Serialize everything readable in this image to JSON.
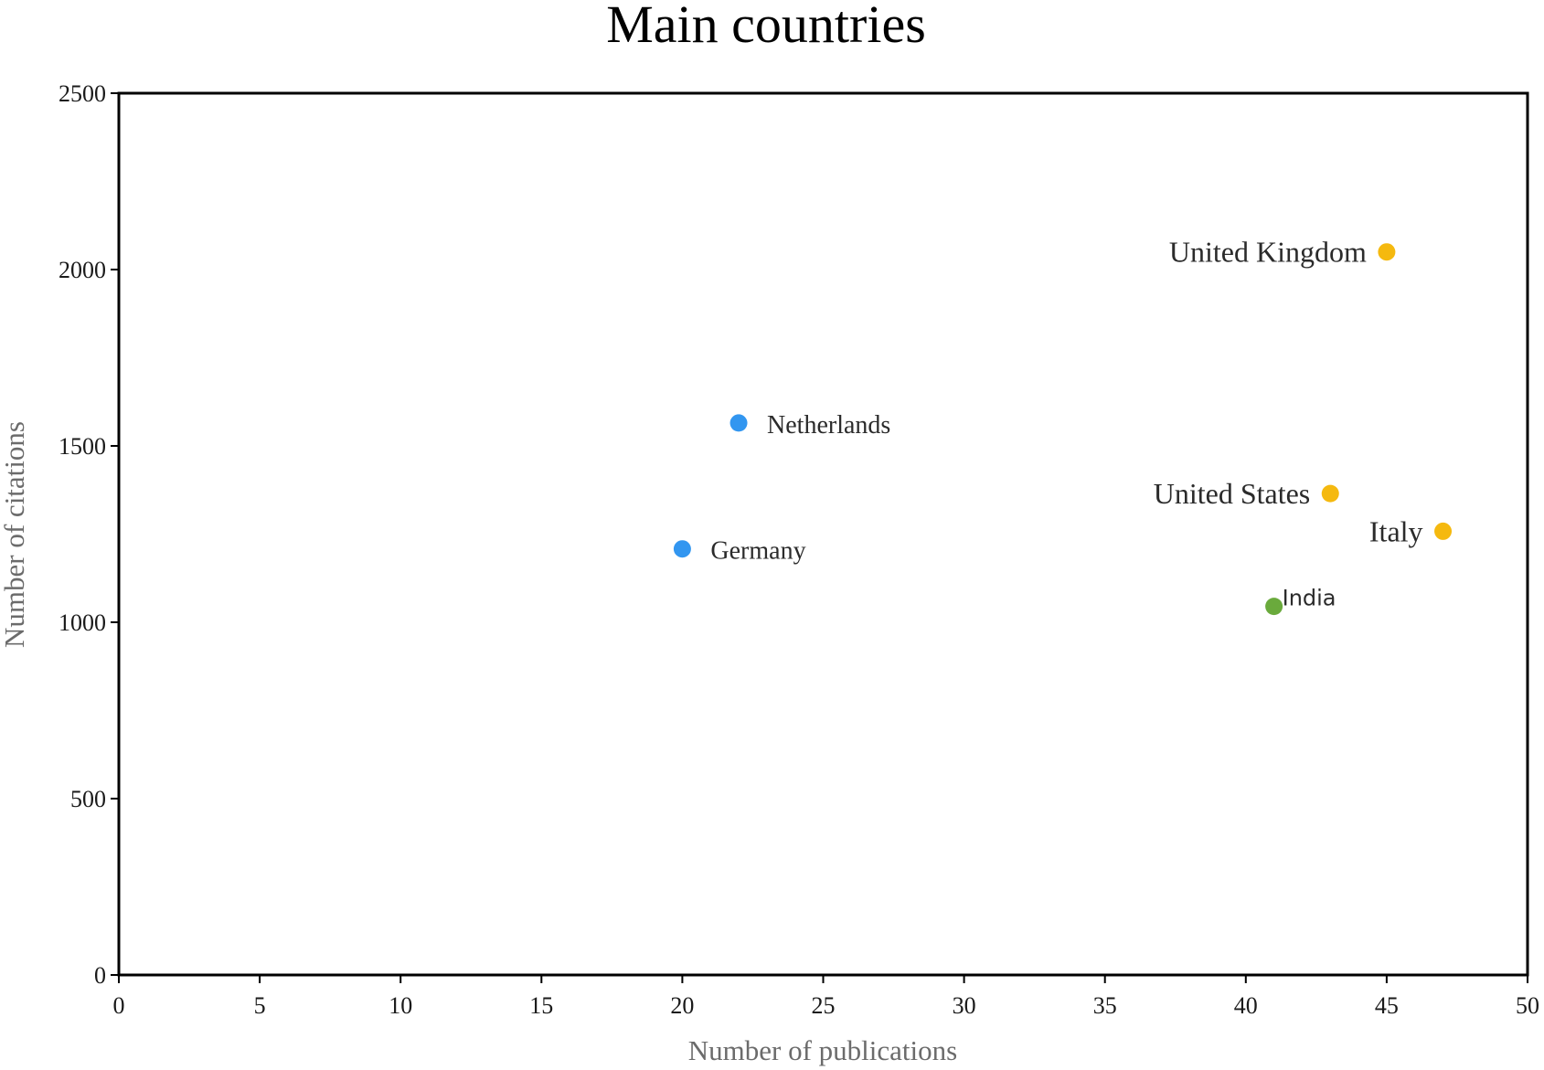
{
  "chart_data": {
    "type": "scatter",
    "title": "Main countries",
    "xlabel": "Number of publications",
    "ylabel": "Number of citations",
    "xlim": [
      0,
      50
    ],
    "ylim": [
      0,
      2500
    ],
    "xticks": [
      0,
      5,
      10,
      15,
      20,
      25,
      30,
      35,
      40,
      45,
      50
    ],
    "yticks": [
      0,
      500,
      1000,
      1500,
      2000,
      2500
    ],
    "grid": false,
    "legend": "none",
    "points": [
      {
        "label": "United Kingdom",
        "x": 45,
        "y": 2050,
        "color": "#F5B90F",
        "label_side": "left"
      },
      {
        "label": "Netherlands",
        "x": 22,
        "y": 1565,
        "color": "#3296F0",
        "label_side": "right"
      },
      {
        "label": "United States",
        "x": 43,
        "y": 1365,
        "color": "#F5B90F",
        "label_side": "left"
      },
      {
        "label": "Italy",
        "x": 47,
        "y": 1258,
        "color": "#F5B90F",
        "label_side": "left"
      },
      {
        "label": "Germany",
        "x": 20,
        "y": 1208,
        "color": "#3296F0",
        "label_side": "right"
      },
      {
        "label": "India",
        "x": 41,
        "y": 1045,
        "color": "#6AAA3C",
        "label_side": "right-above"
      }
    ]
  }
}
